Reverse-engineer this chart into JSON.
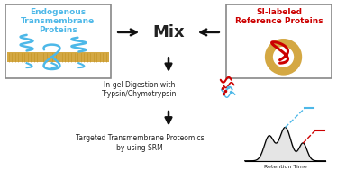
{
  "bg_color": "#ffffff",
  "box1_text": "Endogenous\nTransmembrane\nProteins",
  "box1_text_color": "#4db8e8",
  "box1_border_color": "#888888",
  "box1_bg": "#ffffff",
  "box2_text": "SI-labeled\nReference Proteins",
  "box2_text_color": "#cc0000",
  "box2_border_color": "#888888",
  "box2_bg": "#ffffff",
  "mix_text": "Mix",
  "mix_fontsize": 13,
  "step1_text": "In-gel Digestion with\nTrypsin/Chymotrypsin",
  "step2_text": "Targeted Transmembrane Proteomics\nby using SRM",
  "retention_text": "Retention Time",
  "text_color": "#222222",
  "arrow_color": "#111111",
  "membrane_color": "#d4a843",
  "protein_blue": "#4db8e8",
  "protein_red": "#cc0000",
  "gold_color": "#d4a843"
}
